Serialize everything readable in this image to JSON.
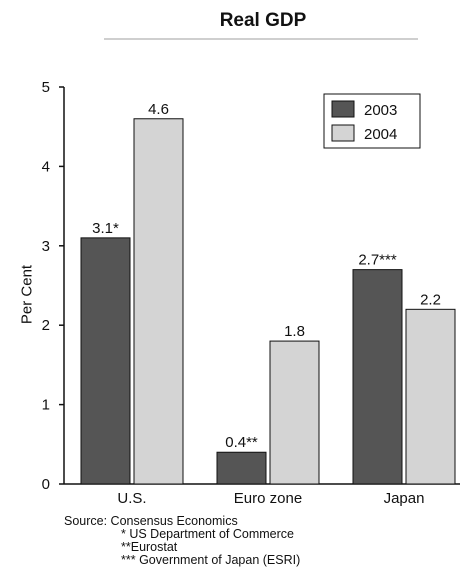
{
  "chart_data": {
    "type": "bar",
    "title": "Real GDP",
    "ylabel": "Per Cent",
    "xlabel": "",
    "categories": [
      "U.S.",
      "Euro zone",
      "Japan"
    ],
    "ylim": [
      0,
      5
    ],
    "yticks": [
      "0",
      "1",
      "2",
      "3",
      "4",
      "5"
    ],
    "grid": false,
    "legend_position": "top-right",
    "series": [
      {
        "name": "2003",
        "color": "#555555",
        "values": [
          3.1,
          0.4,
          2.7
        ],
        "labels": [
          "3.1*",
          "0.4**",
          "2.7***"
        ]
      },
      {
        "name": "2004",
        "color": "#d4d4d4",
        "values": [
          4.6,
          1.8,
          2.2
        ],
        "labels": [
          "4.6",
          "1.8",
          "2.2"
        ]
      }
    ]
  },
  "source": {
    "line1": "Source: Consensus Economics",
    "line2": "* US Department of Commerce",
    "line3": "**Eurostat",
    "line4": "*** Government of Japan (ESRI)"
  }
}
